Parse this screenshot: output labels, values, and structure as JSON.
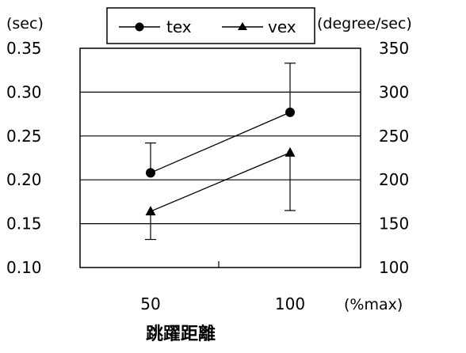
{
  "chart_data": {
    "type": "line",
    "left_unit": "(sec)",
    "right_unit": "(degree/sec)",
    "x_unit": "(%max)",
    "xlabel": "跳躍距離",
    "categories": [
      "50",
      "100"
    ],
    "y_left": {
      "ylim": [
        0.1,
        0.35
      ],
      "ticks": [
        "0.35",
        "0.30",
        "0.25",
        "0.20",
        "0.15",
        "0.10"
      ]
    },
    "y_right": {
      "ylim": [
        100,
        350
      ],
      "ticks": [
        "350",
        "300",
        "250",
        "200",
        "150",
        "100"
      ]
    },
    "grid": true,
    "legend_position": "top",
    "series": [
      {
        "name": "tex",
        "marker": "circle",
        "axis": "left",
        "values": [
          0.208,
          0.277
        ],
        "error_upper": [
          0.242,
          0.333
        ],
        "error_lower": [
          null,
          null
        ]
      },
      {
        "name": "vex",
        "marker": "triangle",
        "axis": "left",
        "values": [
          0.164,
          0.231
        ],
        "error_upper": [
          null,
          null
        ],
        "error_lower": [
          0.132,
          0.165
        ]
      }
    ]
  }
}
